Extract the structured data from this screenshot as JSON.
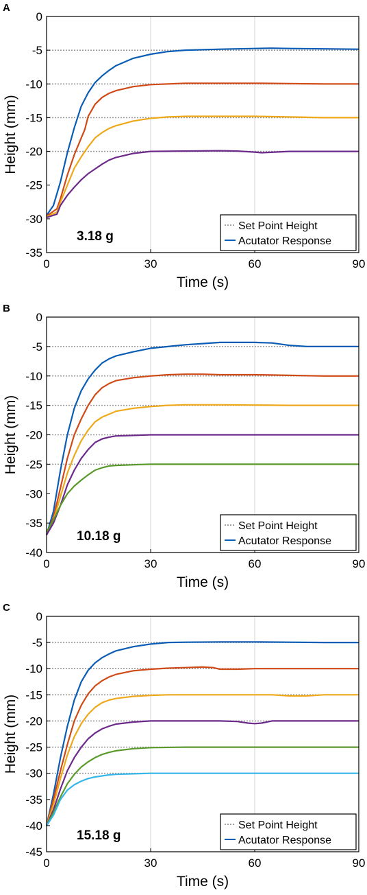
{
  "chart_data": [
    {
      "type": "line",
      "panel_label": "A",
      "annotation": "3.18 g",
      "xlabel": "Time (s)",
      "ylabel": "Height (mm)",
      "xlim": [
        0,
        90
      ],
      "ylim": [
        -35,
        0
      ],
      "xticks": [
        0,
        30,
        60,
        90
      ],
      "yticks": [
        0,
        -5,
        -10,
        -15,
        -20,
        -25,
        -30,
        -35
      ],
      "grid": true,
      "legend_position": "bottom-right",
      "legend": [
        {
          "label": "Set Point Height",
          "style": "dotted",
          "color": "#a0a0a0"
        },
        {
          "label": "Acutator Response",
          "style": "solid",
          "color": "#0a5cb4"
        }
      ],
      "setpoints": [
        -5,
        -10,
        -15,
        -20
      ],
      "series": [
        {
          "color": "#0a5cb4",
          "x": [
            0,
            2,
            4,
            6,
            8,
            10,
            12,
            14,
            16,
            18,
            20,
            25,
            30,
            35,
            40,
            50,
            60,
            65,
            70,
            80,
            90
          ],
          "y": [
            -29.5,
            -28,
            -24.5,
            -20.2,
            -16.5,
            -13.3,
            -11.3,
            -9.8,
            -8.8,
            -8.0,
            -7.3,
            -6.2,
            -5.6,
            -5.2,
            -5.0,
            -4.85,
            -4.75,
            -4.7,
            -4.75,
            -4.8,
            -4.85
          ]
        },
        {
          "color": "#d04a17",
          "x": [
            0,
            3,
            4,
            6,
            8,
            10,
            11,
            12,
            14,
            16,
            18,
            20,
            25,
            30,
            35,
            40,
            50,
            60,
            70,
            80,
            90
          ],
          "y": [
            -29.6,
            -28.5,
            -27,
            -23.5,
            -20.5,
            -18,
            -16.8,
            -14.8,
            -13,
            -12,
            -11.4,
            -11,
            -10.4,
            -10.1,
            -10,
            -9.9,
            -9.9,
            -9.9,
            -9.95,
            -10,
            -10
          ]
        },
        {
          "color": "#eea91b",
          "x": [
            0,
            3,
            4,
            6,
            8,
            10,
            12,
            14,
            16,
            18,
            20,
            25,
            30,
            35,
            40,
            50,
            60,
            70,
            80,
            90
          ],
          "y": [
            -29.7,
            -29,
            -27.5,
            -25,
            -22.5,
            -20.8,
            -19.3,
            -18,
            -17.2,
            -16.6,
            -16.2,
            -15.5,
            -15.1,
            -14.9,
            -14.8,
            -14.8,
            -14.8,
            -14.9,
            -15,
            -15
          ]
        },
        {
          "color": "#6c2a8a",
          "x": [
            0,
            3,
            4,
            6,
            8,
            10,
            12,
            14,
            16,
            18,
            20,
            25,
            30,
            40,
            50,
            55,
            60,
            62,
            70,
            80,
            90
          ],
          "y": [
            -29.8,
            -29.3,
            -28,
            -26.5,
            -25.3,
            -24.2,
            -23.3,
            -22.6,
            -21.9,
            -21.3,
            -20.9,
            -20.3,
            -20,
            -19.95,
            -19.9,
            -19.95,
            -20.1,
            -20.2,
            -20,
            -20,
            -20
          ]
        }
      ]
    },
    {
      "type": "line",
      "panel_label": "B",
      "annotation": "10.18 g",
      "xlabel": "Time (s)",
      "ylabel": "Height (mm)",
      "xlim": [
        0,
        90
      ],
      "ylim": [
        -40,
        0
      ],
      "xticks": [
        0,
        30,
        60,
        90
      ],
      "yticks": [
        0,
        -5,
        -10,
        -15,
        -20,
        -25,
        -30,
        -35,
        -40
      ],
      "grid": true,
      "legend_position": "bottom-right",
      "legend": [
        {
          "label": "Set Point Height",
          "style": "dotted",
          "color": "#a0a0a0"
        },
        {
          "label": "Acutator Response",
          "style": "solid",
          "color": "#0a5cb4"
        }
      ],
      "setpoints": [
        -5,
        -10,
        -15,
        -20,
        -25
      ],
      "series": [
        {
          "color": "#0a5cb4",
          "x": [
            0,
            2,
            4,
            6,
            8,
            10,
            12,
            14,
            16,
            18,
            20,
            25,
            30,
            35,
            40,
            45,
            50,
            60,
            65,
            70,
            75,
            80,
            90
          ],
          "y": [
            -37,
            -33,
            -26,
            -20,
            -15.5,
            -12.5,
            -10.5,
            -9.0,
            -7.8,
            -7.1,
            -6.6,
            -5.9,
            -5.3,
            -5.0,
            -4.7,
            -4.5,
            -4.3,
            -4.3,
            -4.4,
            -4.8,
            -5.0,
            -5.0,
            -5.0
          ]
        },
        {
          "color": "#d04a17",
          "x": [
            0,
            2,
            4,
            6,
            8,
            10,
            12,
            14,
            16,
            18,
            20,
            25,
            30,
            35,
            40,
            45,
            50,
            60,
            70,
            80,
            90
          ],
          "y": [
            -37,
            -34,
            -29,
            -24,
            -20,
            -17.3,
            -15,
            -13.2,
            -12,
            -11.3,
            -10.8,
            -10.3,
            -10.0,
            -9.8,
            -9.7,
            -9.7,
            -9.8,
            -9.8,
            -9.9,
            -10,
            -10
          ]
        },
        {
          "color": "#eea91b",
          "x": [
            0,
            2,
            4,
            6,
            8,
            10,
            12,
            14,
            16,
            18,
            20,
            25,
            30,
            35,
            40,
            50,
            60,
            70,
            80,
            90
          ],
          "y": [
            -37,
            -34.5,
            -30.5,
            -26.5,
            -23.5,
            -21,
            -19.2,
            -17.8,
            -17,
            -16.5,
            -16,
            -15.5,
            -15.2,
            -15,
            -14.9,
            -14.9,
            -14.95,
            -15,
            -15,
            -15
          ]
        },
        {
          "color": "#6c2a8a",
          "x": [
            0,
            2,
            4,
            6,
            8,
            10,
            12,
            14,
            16,
            18,
            20,
            25,
            30,
            40,
            50,
            60,
            70,
            80,
            90
          ],
          "y": [
            -37,
            -35,
            -32,
            -28.5,
            -26,
            -24,
            -22.5,
            -21.3,
            -20.7,
            -20.4,
            -20.2,
            -20.1,
            -20,
            -20,
            -20,
            -20,
            -20,
            -20,
            -20
          ]
        },
        {
          "color": "#5a9a2a",
          "x": [
            0,
            2,
            4,
            6,
            8,
            10,
            12,
            14,
            16,
            18,
            20,
            25,
            30,
            40,
            50,
            60,
            70,
            80,
            90
          ],
          "y": [
            -36.5,
            -34.5,
            -32,
            -30,
            -28.7,
            -27.7,
            -26.8,
            -26.0,
            -25.6,
            -25.3,
            -25.2,
            -25.1,
            -25.0,
            -25,
            -25,
            -25,
            -25,
            -25,
            -25
          ]
        }
      ]
    },
    {
      "type": "line",
      "panel_label": "C",
      "annotation": "15.18 g",
      "xlabel": "Time (s)",
      "ylabel": "Height (mm)",
      "xlim": [
        0,
        90
      ],
      "ylim": [
        -45,
        0
      ],
      "xticks": [
        0,
        30,
        60,
        90
      ],
      "yticks": [
        0,
        -5,
        -10,
        -15,
        -20,
        -25,
        -30,
        -35,
        -40,
        -45
      ],
      "grid": true,
      "legend_position": "bottom-right",
      "legend": [
        {
          "label": "Set Point Height",
          "style": "dotted",
          "color": "#a0a0a0"
        },
        {
          "label": "Acutator Response",
          "style": "solid",
          "color": "#0a5cb4"
        }
      ],
      "setpoints": [
        -5,
        -10,
        -15,
        -20,
        -25,
        -30
      ],
      "series": [
        {
          "color": "#0a5cb4",
          "x": [
            0,
            2,
            4,
            6,
            8,
            10,
            12,
            14,
            16,
            18,
            20,
            25,
            30,
            35,
            40,
            50,
            60,
            70,
            80,
            90
          ],
          "y": [
            -40,
            -34,
            -27,
            -21,
            -16,
            -12.5,
            -10.3,
            -8.9,
            -7.9,
            -7.2,
            -6.6,
            -5.8,
            -5.3,
            -5.0,
            -4.95,
            -4.9,
            -4.9,
            -4.95,
            -5,
            -5
          ]
        },
        {
          "color": "#d04a17",
          "x": [
            0,
            2,
            4,
            6,
            8,
            10,
            12,
            14,
            16,
            18,
            20,
            25,
            30,
            35,
            40,
            45,
            48,
            50,
            55,
            60,
            70,
            80,
            90
          ],
          "y": [
            -40,
            -35,
            -29.5,
            -24.5,
            -20,
            -17,
            -14.8,
            -13.3,
            -12.3,
            -11.6,
            -11.1,
            -10.4,
            -10.1,
            -9.9,
            -9.8,
            -9.7,
            -9.8,
            -10.1,
            -10.1,
            -10.0,
            -10,
            -10,
            -10
          ]
        },
        {
          "color": "#eea91b",
          "x": [
            0,
            2,
            4,
            6,
            8,
            10,
            12,
            14,
            16,
            18,
            20,
            25,
            30,
            35,
            40,
            50,
            60,
            65,
            70,
            75,
            80,
            90
          ],
          "y": [
            -40,
            -36,
            -31,
            -26.5,
            -23,
            -20.5,
            -18.7,
            -17.4,
            -16.5,
            -16,
            -15.7,
            -15.3,
            -15.1,
            -15,
            -15,
            -15,
            -15,
            -15,
            -15.2,
            -15.2,
            -15,
            -15
          ]
        },
        {
          "color": "#6c2a8a",
          "x": [
            0,
            2,
            4,
            6,
            8,
            10,
            12,
            14,
            16,
            18,
            20,
            25,
            30,
            40,
            50,
            55,
            58,
            60,
            62,
            65,
            70,
            80,
            90
          ],
          "y": [
            -40,
            -37,
            -33,
            -29.5,
            -27,
            -25,
            -23.4,
            -22.3,
            -21.5,
            -21,
            -20.6,
            -20.2,
            -20,
            -20,
            -20,
            -20.1,
            -20.4,
            -20.5,
            -20.4,
            -20,
            -20,
            -20,
            -20
          ]
        },
        {
          "color": "#5a9a2a",
          "x": [
            0,
            2,
            4,
            6,
            8,
            10,
            12,
            14,
            16,
            18,
            20,
            25,
            30,
            40,
            50,
            60,
            70,
            80,
            90
          ],
          "y": [
            -40,
            -37.5,
            -34.5,
            -32,
            -30.2,
            -28.8,
            -27.8,
            -27,
            -26.4,
            -26,
            -25.7,
            -25.3,
            -25.1,
            -25,
            -25,
            -25,
            -25,
            -25,
            -25
          ]
        },
        {
          "color": "#35b6e8",
          "x": [
            0,
            2,
            4,
            6,
            8,
            10,
            12,
            14,
            16,
            18,
            20,
            25,
            30,
            40,
            50,
            60,
            70,
            80,
            90
          ],
          "y": [
            -40,
            -38,
            -35,
            -33.2,
            -32.2,
            -31.5,
            -31,
            -30.7,
            -30.5,
            -30.3,
            -30.2,
            -30.1,
            -30,
            -30,
            -30,
            -30,
            -30,
            -30,
            -30
          ]
        }
      ]
    }
  ]
}
